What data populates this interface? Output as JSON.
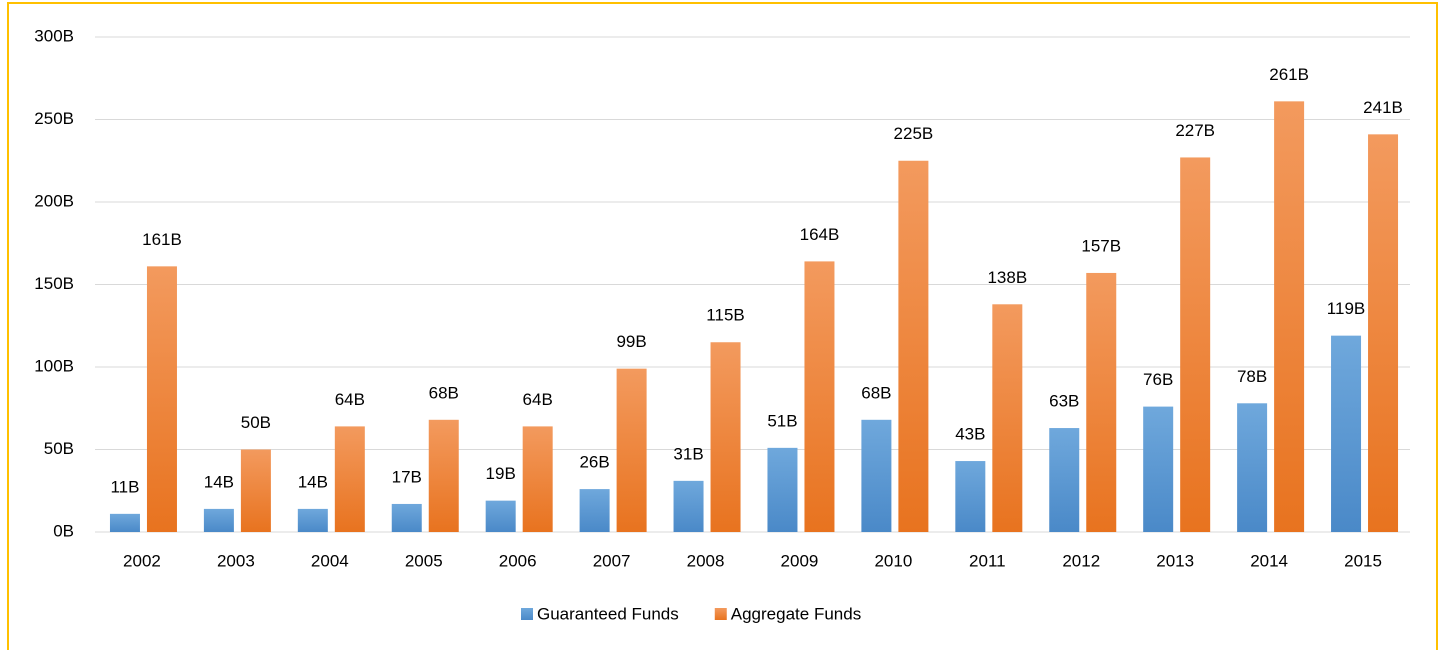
{
  "chart_data": {
    "type": "bar",
    "categories": [
      "2002",
      "2003",
      "2004",
      "2005",
      "2006",
      "2007",
      "2008",
      "2009",
      "2010",
      "2011",
      "2012",
      "2013",
      "2014",
      "2015"
    ],
    "series": [
      {
        "name": "Guaranteed Funds",
        "color": "#5b9bd5",
        "values": [
          11,
          14,
          14,
          17,
          19,
          26,
          31,
          51,
          68,
          43,
          63,
          76,
          78,
          119
        ],
        "value_labels": [
          "11B",
          "14B",
          "14B",
          "17B",
          "19B",
          "26B",
          "31B",
          "51B",
          "68B",
          "43B",
          "63B",
          "76B",
          "78B",
          "119B"
        ]
      },
      {
        "name": "Aggregate Funds",
        "color": "#ed7d31",
        "values": [
          161,
          50,
          64,
          68,
          64,
          99,
          115,
          164,
          225,
          138,
          157,
          227,
          261,
          241
        ],
        "value_labels": [
          "161B",
          "50B",
          "64B",
          "68B",
          "64B",
          "99B",
          "115B",
          "164B",
          "225B",
          "138B",
          "157B",
          "227B",
          "261B",
          "241B"
        ]
      }
    ],
    "ylim": [
      0,
      300
    ],
    "yticks": [
      {
        "value": 0,
        "label": "0B"
      },
      {
        "value": 50,
        "label": "50B"
      },
      {
        "value": 100,
        "label": "100B"
      },
      {
        "value": 150,
        "label": "150B"
      },
      {
        "value": 200,
        "label": "200B"
      },
      {
        "value": 250,
        "label": "250B"
      },
      {
        "value": 300,
        "label": "300B"
      }
    ],
    "grid": true,
    "legend": "bottom"
  }
}
